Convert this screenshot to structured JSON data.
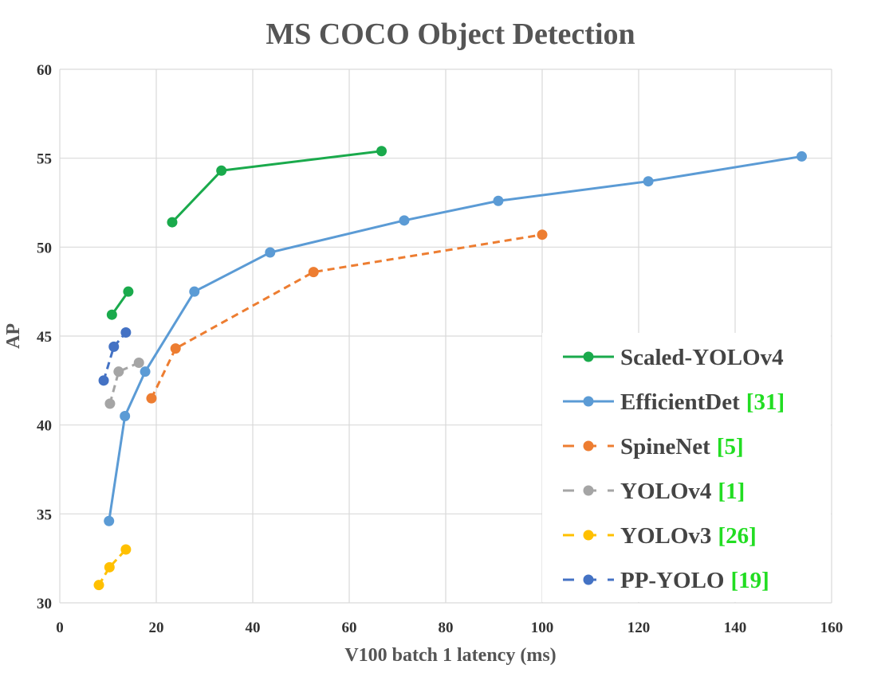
{
  "chart_data": {
    "type": "line",
    "title": "MS COCO Object Detection",
    "xlabel": "V100 batch 1 latency (ms)",
    "ylabel": "AP",
    "xlim": [
      0,
      160
    ],
    "ylim": [
      30,
      60
    ],
    "x_ticks": [
      "0",
      "20",
      "40",
      "60",
      "80",
      "100",
      "120",
      "140",
      "160"
    ],
    "y_ticks": [
      "30",
      "35",
      "40",
      "45",
      "50",
      "55",
      "60"
    ],
    "grid": true,
    "legend_position": "bottom-right",
    "series": [
      {
        "name": "Scaled-YOLOv4",
        "ref": "",
        "color": "#1aaa4c",
        "dash": "solid",
        "segments": [
          [
            [
              10.8,
              46.2
            ],
            [
              14.2,
              47.5
            ]
          ],
          [
            [
              23.3,
              51.4
            ],
            [
              33.5,
              54.3
            ],
            [
              66.7,
              55.4
            ]
          ]
        ]
      },
      {
        "name": "EfficientDet",
        "ref": "[31]",
        "color": "#5b9bd5",
        "dash": "solid",
        "segments": [
          [
            [
              10.2,
              34.6
            ],
            [
              13.5,
              40.5
            ],
            [
              17.7,
              43.0
            ],
            [
              27.9,
              47.5
            ],
            [
              43.6,
              49.7
            ],
            [
              71.4,
              51.5
            ],
            [
              90.9,
              52.6
            ],
            [
              122.0,
              53.7
            ],
            [
              153.8,
              55.1
            ]
          ]
        ]
      },
      {
        "name": "SpineNet",
        "ref": "[5]",
        "color": "#ed7d31",
        "dash": "dashed",
        "segments": [
          [
            [
              19.0,
              41.5
            ],
            [
              24.0,
              44.3
            ],
            [
              52.6,
              48.6
            ],
            [
              100.0,
              50.7
            ]
          ]
        ]
      },
      {
        "name": "YOLOv4",
        "ref": "[1]",
        "color": "#a5a5a5",
        "dash": "dashed",
        "segments": [
          [
            [
              10.4,
              41.2
            ],
            [
              12.2,
              43.0
            ],
            [
              16.4,
              43.5
            ]
          ]
        ]
      },
      {
        "name": "YOLOv3",
        "ref": "[26]",
        "color": "#ffc000",
        "dash": "dashed",
        "segments": [
          [
            [
              8.1,
              31.0
            ],
            [
              10.3,
              32.0
            ],
            [
              13.7,
              33.0
            ]
          ]
        ]
      },
      {
        "name": "PP-YOLO",
        "ref": "[19]",
        "color": "#4472c4",
        "dash": "dashed",
        "segments": [
          [
            [
              9.1,
              42.5
            ],
            [
              11.2,
              44.4
            ],
            [
              13.7,
              45.2
            ]
          ]
        ]
      }
    ]
  }
}
